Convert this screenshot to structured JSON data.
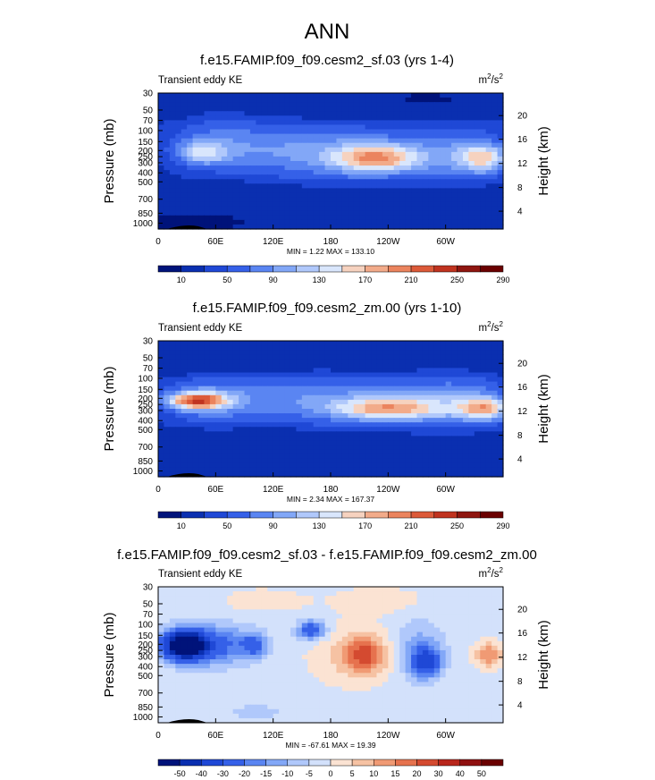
{
  "figure_title": "ANN",
  "chart_data": [
    {
      "type": "heatmap",
      "title": "f.e15.FAMIP.f09_f09.cesm2_sf.03 (yrs 1-4)",
      "subtitle_left": "Transient eddy KE",
      "units": "m²/s²",
      "units_base": "m",
      "units_sup1": "2",
      "units_mid": "/s",
      "units_sup2": "2",
      "ylabel": "Pressure (mb)",
      "ylabel_right": "Height (km)",
      "pressure_ticks": [
        "30",
        "50",
        "70",
        "100",
        "150",
        "200",
        "250",
        "300",
        "400",
        "500",
        "700",
        "850",
        "1000"
      ],
      "height_ticks": [
        "20",
        "16",
        "12",
        "8",
        "4"
      ],
      "x_ticks": [
        "0",
        "60E",
        "120E",
        "180",
        "120W",
        "60W"
      ],
      "stats": "MIN =   1.22  MAX = 133.10",
      "colorbar_labels": [
        "10",
        "50",
        "90",
        "130",
        "170",
        "210",
        "250",
        "290"
      ],
      "min": 1.22,
      "max": 133.1
    },
    {
      "type": "heatmap",
      "title": "f.e15.FAMIP.f09_f09.cesm2_zm.00 (yrs 1-10)",
      "subtitle_left": "Transient eddy KE",
      "units": "m²/s²",
      "units_base": "m",
      "units_sup1": "2",
      "units_mid": "/s",
      "units_sup2": "2",
      "ylabel": "Pressure (mb)",
      "ylabel_right": "Height (km)",
      "pressure_ticks": [
        "30",
        "50",
        "70",
        "100",
        "150",
        "200",
        "250",
        "300",
        "400",
        "500",
        "700",
        "850",
        "1000"
      ],
      "height_ticks": [
        "20",
        "16",
        "12",
        "8",
        "4"
      ],
      "x_ticks": [
        "0",
        "60E",
        "120E",
        "180",
        "120W",
        "60W"
      ],
      "stats": "MIN =   2.34  MAX = 167.37",
      "colorbar_labels": [
        "10",
        "50",
        "90",
        "130",
        "170",
        "210",
        "250",
        "290"
      ],
      "min": 2.34,
      "max": 167.37
    },
    {
      "type": "heatmap",
      "title": "f.e15.FAMIP.f09_f09.cesm2_sf.03 - f.e15.FAMIP.f09_f09.cesm2_zm.00",
      "subtitle_left": "Transient eddy KE",
      "units": "m²/s²",
      "units_base": "m",
      "units_sup1": "2",
      "units_mid": "/s",
      "units_sup2": "2",
      "ylabel": "Pressure (mb)",
      "ylabel_right": "Height (km)",
      "pressure_ticks": [
        "30",
        "50",
        "70",
        "100",
        "150",
        "200",
        "250",
        "300",
        "400",
        "500",
        "700",
        "850",
        "1000"
      ],
      "height_ticks": [
        "20",
        "16",
        "12",
        "8",
        "4"
      ],
      "x_ticks": [
        "0",
        "60E",
        "120E",
        "180",
        "120W",
        "60W"
      ],
      "stats": "MIN = -67.61  MAX =  19.39",
      "colorbar_labels": [
        "-50",
        "-40",
        "-30",
        "-20",
        "-15",
        "-10",
        "-5",
        "0",
        "5",
        "10",
        "15",
        "20",
        "30",
        "40",
        "50"
      ],
      "min": -67.61,
      "max": 19.39
    }
  ],
  "colors": {
    "seq": [
      "#00137a",
      "#0a2fb0",
      "#1f48d6",
      "#3560e8",
      "#5a85f2",
      "#82a7f7",
      "#b0c8fb",
      "#d9e6fc",
      "#f6d2bf",
      "#f2ab8a",
      "#eb845e",
      "#dc5a39",
      "#c0331f",
      "#8f1610",
      "#6a0000"
    ],
    "div": [
      "#00137a",
      "#0a2fb0",
      "#1f48d6",
      "#3560e8",
      "#5a85f2",
      "#82a7f7",
      "#b0c8fb",
      "#d3e1fb",
      "#fbe3d3",
      "#f6c2a3",
      "#f09a74",
      "#e6724e",
      "#d44a30",
      "#b8261c",
      "#8f1010",
      "#6a0000"
    ]
  }
}
